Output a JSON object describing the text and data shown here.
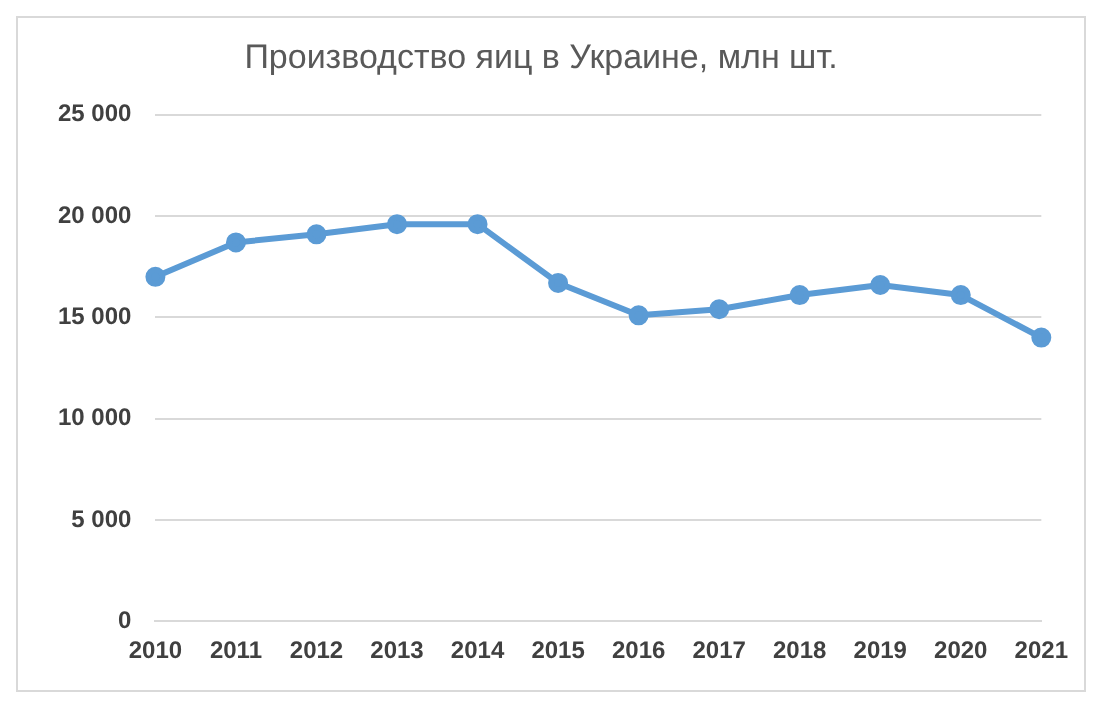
{
  "chart_data": {
    "type": "line",
    "title": "Производство яиц в Украине, млн шт.",
    "categories": [
      "2010",
      "2011",
      "2012",
      "2013",
      "2014",
      "2015",
      "2016",
      "2017",
      "2018",
      "2019",
      "2020",
      "2021"
    ],
    "series": [
      {
        "color": "#5b9bd5",
        "values": [
          17000,
          18700,
          19100,
          19600,
          19600,
          16700,
          15100,
          15400,
          16100,
          16600,
          16100,
          14000
        ]
      }
    ],
    "ylim": [
      0,
      25000
    ],
    "yticks": [
      {
        "value": 0,
        "label": "0"
      },
      {
        "value": 5000,
        "label": "5 000"
      },
      {
        "value": 10000,
        "label": "10 000"
      },
      {
        "value": 15000,
        "label": "15 000"
      },
      {
        "value": 20000,
        "label": "20 000"
      },
      {
        "value": 25000,
        "label": "25 000"
      }
    ],
    "grid": "y",
    "marker": "circle",
    "line_style": "solid",
    "legend": false
  }
}
